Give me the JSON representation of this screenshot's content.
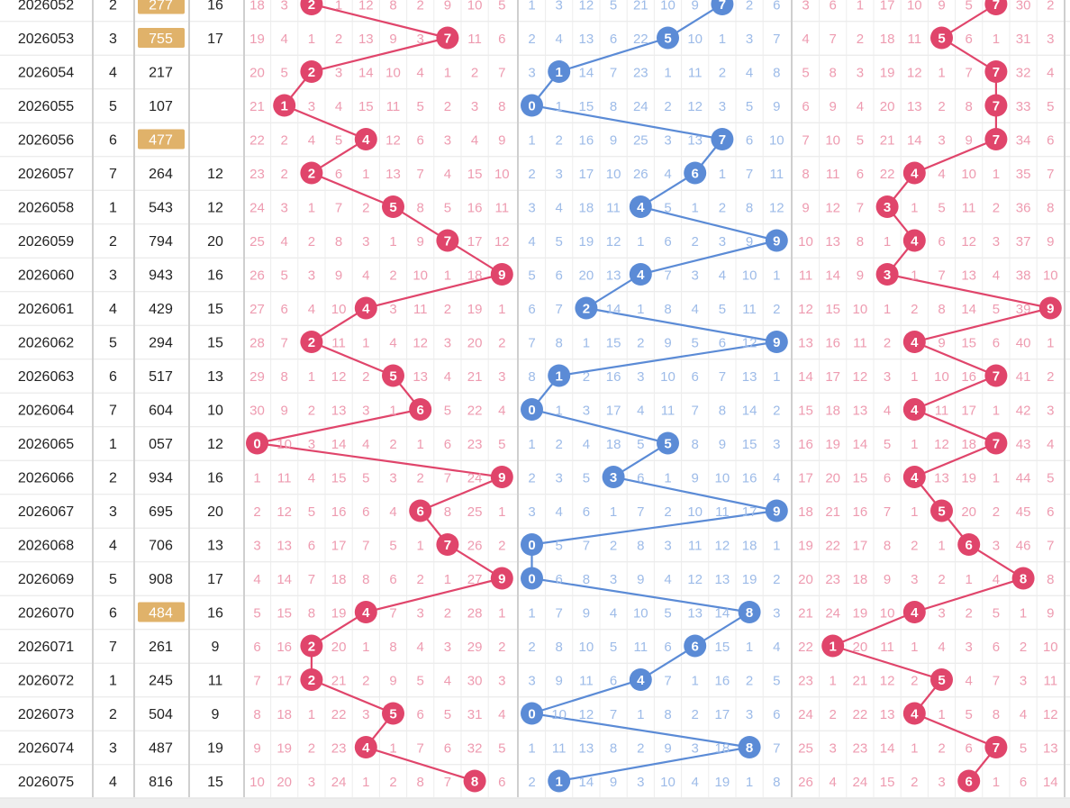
{
  "table": {
    "rows": [
      {
        "issue": "2026052",
        "seq": "2",
        "num": "277",
        "sum": "16",
        "hl": true,
        "bai": [
          "18",
          "3",
          "2",
          "1",
          "12",
          "8",
          "2",
          "9",
          "10",
          "5"
        ],
        "shi": [
          "1",
          "3",
          "12",
          "5",
          "21",
          "10",
          "9",
          "7",
          "2",
          "6"
        ],
        "ge": [
          "3",
          "6",
          "1",
          "17",
          "10",
          "9",
          "5",
          "7",
          "30",
          "2"
        ]
      },
      {
        "issue": "2026053",
        "seq": "3",
        "num": "755",
        "sum": "17",
        "hl": true,
        "bai": [
          "19",
          "4",
          "1",
          "2",
          "13",
          "9",
          "3",
          "7",
          "11",
          "6"
        ],
        "shi": [
          "2",
          "4",
          "13",
          "6",
          "22",
          "5",
          "10",
          "1",
          "3",
          "7"
        ],
        "ge": [
          "4",
          "7",
          "2",
          "18",
          "11",
          "5",
          "6",
          "1",
          "31",
          "3"
        ]
      },
      {
        "issue": "2026054",
        "seq": "4",
        "num": "217",
        "sum": "",
        "hl": false,
        "bai": [
          "20",
          "5",
          "2",
          "3",
          "14",
          "10",
          "4",
          "1",
          "2",
          "7"
        ],
        "shi": [
          "3",
          "1",
          "14",
          "7",
          "23",
          "1",
          "11",
          "2",
          "4",
          "8"
        ],
        "ge": [
          "5",
          "8",
          "3",
          "19",
          "12",
          "1",
          "7",
          "7",
          "32",
          "4"
        ]
      },
      {
        "issue": "2026055",
        "seq": "5",
        "num": "107",
        "sum": "",
        "hl": false,
        "bai": [
          "21",
          "1",
          "3",
          "4",
          "15",
          "11",
          "5",
          "2",
          "3",
          "8"
        ],
        "shi": [
          "0",
          "1",
          "15",
          "8",
          "24",
          "2",
          "12",
          "3",
          "5",
          "9"
        ],
        "ge": [
          "6",
          "9",
          "4",
          "20",
          "13",
          "2",
          "8",
          "7",
          "33",
          "5"
        ]
      },
      {
        "issue": "2026056",
        "seq": "6",
        "num": "477",
        "sum": "",
        "hl": true,
        "bai": [
          "22",
          "2",
          "4",
          "5",
          "4",
          "12",
          "6",
          "3",
          "4",
          "9"
        ],
        "shi": [
          "1",
          "2",
          "16",
          "9",
          "25",
          "3",
          "13",
          "7",
          "6",
          "10"
        ],
        "ge": [
          "7",
          "10",
          "5",
          "21",
          "14",
          "3",
          "9",
          "7",
          "34",
          "6"
        ]
      },
      {
        "issue": "2026057",
        "seq": "7",
        "num": "264",
        "sum": "12",
        "hl": false,
        "bai": [
          "23",
          "2",
          "2",
          "6",
          "1",
          "13",
          "7",
          "4",
          "15",
          "10"
        ],
        "shi": [
          "2",
          "3",
          "17",
          "10",
          "26",
          "4",
          "6",
          "1",
          "7",
          "11"
        ],
        "ge": [
          "8",
          "11",
          "6",
          "22",
          "4",
          "4",
          "10",
          "1",
          "35",
          "7"
        ]
      },
      {
        "issue": "2026058",
        "seq": "1",
        "num": "543",
        "sum": "12",
        "hl": false,
        "bai": [
          "24",
          "3",
          "1",
          "7",
          "2",
          "5",
          "8",
          "5",
          "16",
          "11"
        ],
        "shi": [
          "3",
          "4",
          "18",
          "11",
          "4",
          "5",
          "1",
          "2",
          "8",
          "12"
        ],
        "ge": [
          "9",
          "12",
          "7",
          "3",
          "1",
          "5",
          "11",
          "2",
          "36",
          "8"
        ]
      },
      {
        "issue": "2026059",
        "seq": "2",
        "num": "794",
        "sum": "20",
        "hl": false,
        "bai": [
          "25",
          "4",
          "2",
          "8",
          "3",
          "1",
          "9",
          "7",
          "17",
          "12"
        ],
        "shi": [
          "4",
          "5",
          "19",
          "12",
          "1",
          "6",
          "2",
          "3",
          "9",
          "9"
        ],
        "ge": [
          "10",
          "13",
          "8",
          "1",
          "4",
          "6",
          "12",
          "3",
          "37",
          "9"
        ]
      },
      {
        "issue": "2026060",
        "seq": "3",
        "num": "943",
        "sum": "16",
        "hl": false,
        "bai": [
          "26",
          "5",
          "3",
          "9",
          "4",
          "2",
          "10",
          "1",
          "18",
          "9"
        ],
        "shi": [
          "5",
          "6",
          "20",
          "13",
          "4",
          "7",
          "3",
          "4",
          "10",
          "1"
        ],
        "ge": [
          "11",
          "14",
          "9",
          "3",
          "1",
          "7",
          "13",
          "4",
          "38",
          "10"
        ]
      },
      {
        "issue": "2026061",
        "seq": "4",
        "num": "429",
        "sum": "15",
        "hl": false,
        "bai": [
          "27",
          "6",
          "4",
          "10",
          "4",
          "3",
          "11",
          "2",
          "19",
          "1"
        ],
        "shi": [
          "6",
          "7",
          "2",
          "14",
          "1",
          "8",
          "4",
          "5",
          "11",
          "2"
        ],
        "ge": [
          "12",
          "15",
          "10",
          "1",
          "2",
          "8",
          "14",
          "5",
          "39",
          "9"
        ]
      },
      {
        "issue": "2026062",
        "seq": "5",
        "num": "294",
        "sum": "15",
        "hl": false,
        "bai": [
          "28",
          "7",
          "2",
          "11",
          "1",
          "4",
          "12",
          "3",
          "20",
          "2"
        ],
        "shi": [
          "7",
          "8",
          "1",
          "15",
          "2",
          "9",
          "5",
          "6",
          "12",
          "9"
        ],
        "ge": [
          "13",
          "16",
          "11",
          "2",
          "4",
          "9",
          "15",
          "6",
          "40",
          "1"
        ]
      },
      {
        "issue": "2026063",
        "seq": "6",
        "num": "517",
        "sum": "13",
        "hl": false,
        "bai": [
          "29",
          "8",
          "1",
          "12",
          "2",
          "5",
          "13",
          "4",
          "21",
          "3"
        ],
        "shi": [
          "8",
          "1",
          "2",
          "16",
          "3",
          "10",
          "6",
          "7",
          "13",
          "1"
        ],
        "ge": [
          "14",
          "17",
          "12",
          "3",
          "1",
          "10",
          "16",
          "7",
          "41",
          "2"
        ]
      },
      {
        "issue": "2026064",
        "seq": "7",
        "num": "604",
        "sum": "10",
        "hl": false,
        "bai": [
          "30",
          "9",
          "2",
          "13",
          "3",
          "1",
          "6",
          "5",
          "22",
          "4"
        ],
        "shi": [
          "0",
          "1",
          "3",
          "17",
          "4",
          "11",
          "7",
          "8",
          "14",
          "2"
        ],
        "ge": [
          "15",
          "18",
          "13",
          "4",
          "4",
          "11",
          "17",
          "1",
          "42",
          "3"
        ]
      },
      {
        "issue": "2026065",
        "seq": "1",
        "num": "057",
        "sum": "12",
        "hl": false,
        "bai": [
          "0",
          "10",
          "3",
          "14",
          "4",
          "2",
          "1",
          "6",
          "23",
          "5"
        ],
        "shi": [
          "1",
          "2",
          "4",
          "18",
          "5",
          "5",
          "8",
          "9",
          "15",
          "3"
        ],
        "ge": [
          "16",
          "19",
          "14",
          "5",
          "1",
          "12",
          "18",
          "7",
          "43",
          "4"
        ]
      },
      {
        "issue": "2026066",
        "seq": "2",
        "num": "934",
        "sum": "16",
        "hl": false,
        "bai": [
          "1",
          "11",
          "4",
          "15",
          "5",
          "3",
          "2",
          "7",
          "24",
          "9"
        ],
        "shi": [
          "2",
          "3",
          "5",
          "3",
          "6",
          "1",
          "9",
          "10",
          "16",
          "4"
        ],
        "ge": [
          "17",
          "20",
          "15",
          "6",
          "4",
          "13",
          "19",
          "1",
          "44",
          "5"
        ]
      },
      {
        "issue": "2026067",
        "seq": "3",
        "num": "695",
        "sum": "20",
        "hl": false,
        "bai": [
          "2",
          "12",
          "5",
          "16",
          "6",
          "4",
          "6",
          "8",
          "25",
          "1"
        ],
        "shi": [
          "3",
          "4",
          "6",
          "1",
          "7",
          "2",
          "10",
          "11",
          "17",
          "9"
        ],
        "ge": [
          "18",
          "21",
          "16",
          "7",
          "1",
          "5",
          "20",
          "2",
          "45",
          "6"
        ]
      },
      {
        "issue": "2026068",
        "seq": "4",
        "num": "706",
        "sum": "13",
        "hl": false,
        "bai": [
          "3",
          "13",
          "6",
          "17",
          "7",
          "5",
          "1",
          "7",
          "26",
          "2"
        ],
        "shi": [
          "0",
          "5",
          "7",
          "2",
          "8",
          "3",
          "11",
          "12",
          "18",
          "1"
        ],
        "ge": [
          "19",
          "22",
          "17",
          "8",
          "2",
          "1",
          "6",
          "3",
          "46",
          "7"
        ]
      },
      {
        "issue": "2026069",
        "seq": "5",
        "num": "908",
        "sum": "17",
        "hl": false,
        "bai": [
          "4",
          "14",
          "7",
          "18",
          "8",
          "6",
          "2",
          "1",
          "27",
          "9"
        ],
        "shi": [
          "0",
          "6",
          "8",
          "3",
          "9",
          "4",
          "12",
          "13",
          "19",
          "2"
        ],
        "ge": [
          "20",
          "23",
          "18",
          "9",
          "3",
          "2",
          "1",
          "4",
          "8",
          "8"
        ]
      },
      {
        "issue": "2026070",
        "seq": "6",
        "num": "484",
        "sum": "16",
        "hl": true,
        "bai": [
          "5",
          "15",
          "8",
          "19",
          "4",
          "7",
          "3",
          "2",
          "28",
          "1"
        ],
        "shi": [
          "1",
          "7",
          "9",
          "4",
          "10",
          "5",
          "13",
          "14",
          "8",
          "3"
        ],
        "ge": [
          "21",
          "24",
          "19",
          "10",
          "4",
          "3",
          "2",
          "5",
          "1",
          "9"
        ]
      },
      {
        "issue": "2026071",
        "seq": "7",
        "num": "261",
        "sum": "9",
        "hl": false,
        "bai": [
          "6",
          "16",
          "2",
          "20",
          "1",
          "8",
          "4",
          "3",
          "29",
          "2"
        ],
        "shi": [
          "2",
          "8",
          "10",
          "5",
          "11",
          "6",
          "6",
          "15",
          "1",
          "4"
        ],
        "ge": [
          "22",
          "1",
          "20",
          "11",
          "1",
          "4",
          "3",
          "6",
          "2",
          "10"
        ]
      },
      {
        "issue": "2026072",
        "seq": "1",
        "num": "245",
        "sum": "11",
        "hl": false,
        "bai": [
          "7",
          "17",
          "2",
          "21",
          "2",
          "9",
          "5",
          "4",
          "30",
          "3"
        ],
        "shi": [
          "3",
          "9",
          "11",
          "6",
          "4",
          "7",
          "1",
          "16",
          "2",
          "5"
        ],
        "ge": [
          "23",
          "1",
          "21",
          "12",
          "2",
          "5",
          "4",
          "7",
          "3",
          "11"
        ]
      },
      {
        "issue": "2026073",
        "seq": "2",
        "num": "504",
        "sum": "9",
        "hl": false,
        "bai": [
          "8",
          "18",
          "1",
          "22",
          "3",
          "5",
          "6",
          "5",
          "31",
          "4"
        ],
        "shi": [
          "0",
          "10",
          "12",
          "7",
          "1",
          "8",
          "2",
          "17",
          "3",
          "6"
        ],
        "ge": [
          "24",
          "2",
          "22",
          "13",
          "4",
          "1",
          "5",
          "8",
          "4",
          "12"
        ]
      },
      {
        "issue": "2026074",
        "seq": "3",
        "num": "487",
        "sum": "19",
        "hl": false,
        "bai": [
          "9",
          "19",
          "2",
          "23",
          "4",
          "1",
          "7",
          "6",
          "32",
          "5"
        ],
        "shi": [
          "1",
          "11",
          "13",
          "8",
          "2",
          "9",
          "3",
          "18",
          "8",
          "7"
        ],
        "ge": [
          "25",
          "3",
          "23",
          "14",
          "1",
          "2",
          "6",
          "7",
          "5",
          "13"
        ]
      },
      {
        "issue": "2026075",
        "seq": "4",
        "num": "816",
        "sum": "15",
        "hl": false,
        "bai": [
          "10",
          "20",
          "3",
          "24",
          "1",
          "2",
          "8",
          "7",
          "8",
          "6"
        ],
        "shi": [
          "2",
          "1",
          "14",
          "9",
          "3",
          "10",
          "4",
          "19",
          "1",
          "8"
        ],
        "ge": [
          "26",
          "4",
          "24",
          "15",
          "2",
          "3",
          "6",
          "1",
          "6",
          "14"
        ]
      }
    ]
  },
  "chart_data": {
    "type": "table",
    "columns": [
      "issue",
      "seq",
      "num",
      "sum",
      "bai_0-9",
      "shi_0-9",
      "ge_0-9"
    ],
    "series": [
      {
        "values": [
          2,
          7,
          2,
          1,
          4,
          2,
          5,
          7,
          9,
          4,
          2,
          5,
          6,
          0,
          9,
          6,
          7,
          9,
          4,
          2,
          2,
          5,
          4,
          8
        ]
      },
      {
        "values": [
          7,
          5,
          1,
          0,
          7,
          6,
          4,
          9,
          4,
          2,
          9,
          1,
          0,
          5,
          3,
          9,
          0,
          0,
          8,
          6,
          4,
          0,
          8,
          1
        ]
      },
      {
        "values": [
          7,
          5,
          7,
          7,
          7,
          4,
          3,
          4,
          3,
          9,
          4,
          7,
          4,
          7,
          4,
          5,
          6,
          8,
          4,
          1,
          5,
          4,
          7,
          6
        ]
      }
    ],
    "colors": {
      "bai": "#e0456b",
      "shi": "#5b8bd6",
      "ge": "#e0456b",
      "highlight": "#e0b26a",
      "bai_text": "#ee9bb0",
      "shi_text": "#9dbbe8"
    }
  }
}
